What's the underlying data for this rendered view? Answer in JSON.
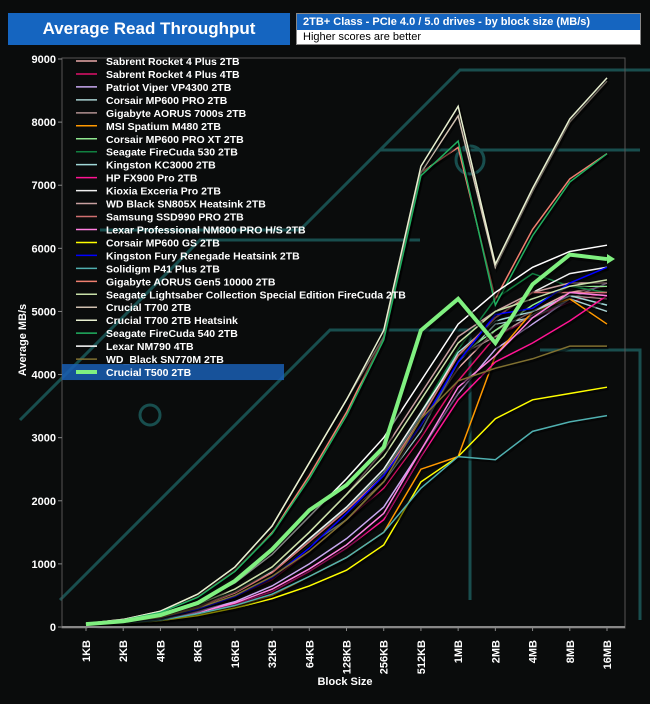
{
  "header": {
    "title": "Average Read Throughput",
    "subtitle": "2TB+ Class - PCIe 4.0 / 5.0  drives - by block size (MB/s)",
    "note": "Higher scores are better"
  },
  "chart_data": {
    "type": "line",
    "title": "Average Read Throughput",
    "xlabel": "Block Size",
    "ylabel": "Average MB/s",
    "ylim": [
      0,
      9000
    ],
    "yticks": [
      0,
      1000,
      2000,
      3000,
      4000,
      5000,
      6000,
      7000,
      8000,
      9000
    ],
    "categories": [
      "1KB",
      "2KB",
      "4KB",
      "8KB",
      "16KB",
      "32KB",
      "64KB",
      "128KB",
      "256KB",
      "512KB",
      "1MB",
      "2MB",
      "4MB",
      "8MB",
      "16MB"
    ],
    "legend_position": "top-left",
    "highlight": "Crucial T500 2TB",
    "series": [
      {
        "name": "Sabrent Rocket 4 Plus 2TB",
        "color": "#e8a8a8",
        "values": [
          40,
          80,
          150,
          300,
          500,
          800,
          1300,
          1800,
          2300,
          3200,
          4100,
          4700,
          5000,
          5300,
          5400
        ]
      },
      {
        "name": "Sabrent Rocket 4 Plus 4TB",
        "color": "#e0106a",
        "values": [
          35,
          75,
          140,
          280,
          480,
          750,
          1200,
          1700,
          2200,
          3000,
          3900,
          4600,
          4900,
          5150,
          5300
        ]
      },
      {
        "name": "Patriot Viper VP4300 2TB",
        "color": "#c8a8f0",
        "values": [
          30,
          70,
          130,
          250,
          400,
          650,
          1000,
          1400,
          1900,
          2800,
          3700,
          4400,
          4800,
          5200,
          5450
        ]
      },
      {
        "name": "Corsair MP600 PRO 2TB",
        "color": "#a8d0d0",
        "values": [
          40,
          85,
          160,
          310,
          520,
          820,
          1300,
          1700,
          2300,
          3100,
          4200,
          4800,
          4900,
          5200,
          5000
        ]
      },
      {
        "name": "Gigabyte AORUS  7000s 2TB",
        "color": "#b09090",
        "values": [
          40,
          85,
          160,
          320,
          540,
          860,
          1350,
          1850,
          2400,
          3300,
          4300,
          4600,
          4950,
          5250,
          5200
        ]
      },
      {
        "name": "MSI Spatium M480 2TB",
        "color": "#ff9900",
        "values": [
          30,
          60,
          110,
          200,
          330,
          500,
          800,
          1100,
          1500,
          2500,
          2700,
          4300,
          5000,
          5200,
          4800
        ]
      },
      {
        "name": "Corsair MP600 PRO XT 2TB",
        "color": "#90e890",
        "values": [
          40,
          85,
          160,
          320,
          540,
          860,
          1350,
          1850,
          2400,
          3300,
          4300,
          4700,
          5100,
          5400,
          5400
        ]
      },
      {
        "name": "Seagate FireCuda 530 2TB",
        "color": "#108040",
        "values": [
          45,
          90,
          170,
          340,
          560,
          900,
          1400,
          1900,
          2500,
          3400,
          4400,
          5200,
          5600,
          5400,
          5300
        ]
      },
      {
        "name": "Kingston KC3000 2TB",
        "color": "#a0d8d8",
        "values": [
          40,
          85,
          160,
          320,
          550,
          880,
          1380,
          1880,
          2450,
          3350,
          4350,
          4850,
          5000,
          5250,
          5100
        ]
      },
      {
        "name": "HP FX900 Pro 2TB",
        "color": "#ff1493",
        "values": [
          30,
          65,
          120,
          220,
          360,
          560,
          880,
          1250,
          1700,
          2700,
          3600,
          4200,
          4500,
          4850,
          5250
        ]
      },
      {
        "name": "Kioxia Exceria Pro 2TB",
        "color": "#f0f0f0",
        "values": [
          40,
          85,
          160,
          320,
          540,
          880,
          1400,
          1900,
          2500,
          3400,
          4300,
          4900,
          5300,
          5600,
          5700
        ]
      },
      {
        "name": "WD Black SN805X  Heatsink 2TB",
        "color": "#c8a0a0",
        "values": [
          45,
          90,
          180,
          360,
          600,
          950,
          1500,
          2100,
          2800,
          3700,
          4600,
          5000,
          5300,
          5450,
          5450
        ]
      },
      {
        "name": "Samsung SSD990 PRO 2TB",
        "color": "#d07070",
        "values": [
          40,
          85,
          160,
          320,
          540,
          860,
          1350,
          1850,
          2400,
          3300,
          4300,
          4900,
          5300,
          5300,
          5300
        ]
      },
      {
        "name": "Lexar Professional NM800 PRO H/S 2TB",
        "color": "#ff80e0",
        "values": [
          30,
          65,
          120,
          230,
          380,
          600,
          920,
          1300,
          1800,
          2800,
          3800,
          4300,
          4900,
          5300,
          5250
        ]
      },
      {
        "name": "Corsair MP600 GS 2TB",
        "color": "#ffff00",
        "values": [
          25,
          50,
          100,
          180,
          300,
          450,
          650,
          900,
          1300,
          2300,
          2700,
          3300,
          3600,
          3700,
          3800
        ]
      },
      {
        "name": "Kingston Fury Renegade Heatsink  2TB",
        "color": "#0000ff",
        "values": [
          35,
          75,
          140,
          280,
          480,
          780,
          1250,
          1800,
          2400,
          3200,
          4200,
          4950,
          5050,
          5450,
          5700
        ]
      },
      {
        "name": "Solidigm P41 Plus 2TB",
        "color": "#50b0b0",
        "values": [
          30,
          60,
          110,
          210,
          340,
          520,
          800,
          1100,
          1500,
          2200,
          2700,
          2650,
          3100,
          3250,
          3350
        ]
      },
      {
        "name": "Gigabyte AORUS Gen5 10000 2TB",
        "color": "#f08070",
        "values": [
          50,
          110,
          230,
          480,
          900,
          1500,
          2400,
          3400,
          4600,
          7200,
          7600,
          5200,
          6300,
          7100,
          7500
        ]
      },
      {
        "name": "Seagate Lightsaber Collection Special Edition FireCuda 2TB",
        "color": "#c8e0a8",
        "values": [
          45,
          95,
          180,
          360,
          600,
          950,
          1500,
          2100,
          2700,
          3600,
          4500,
          5000,
          5200,
          5400,
          5500
        ]
      },
      {
        "name": "Crucial T700 2TB",
        "color": "#d0c0b0",
        "values": [
          55,
          120,
          250,
          520,
          950,
          1600,
          2600,
          3600,
          4600,
          7200,
          8100,
          5700,
          6900,
          8000,
          8650
        ]
      },
      {
        "name": "Crucial T700 2TB Heatsink",
        "color": "#e8f0d0",
        "values": [
          55,
          120,
          250,
          520,
          950,
          1600,
          2600,
          3600,
          4700,
          7300,
          8250,
          5750,
          6950,
          8050,
          8700
        ]
      },
      {
        "name": "Seagate FireCuda 540 2TB",
        "color": "#20b060",
        "values": [
          50,
          110,
          230,
          470,
          880,
          1480,
          2350,
          3350,
          4550,
          7150,
          7700,
          5100,
          6200,
          7050,
          7500
        ]
      },
      {
        "name": "Lexar NM790 4TB",
        "color": "#ffffff",
        "values": [
          50,
          100,
          200,
          400,
          700,
          1150,
          1750,
          2350,
          3000,
          3900,
          4800,
          5300,
          5700,
          5950,
          6050
        ]
      },
      {
        "name": "WD_Black SN770M 2TB",
        "color": "#807030",
        "values": [
          40,
          80,
          150,
          300,
          500,
          800,
          1200,
          1700,
          2300,
          3300,
          3900,
          4100,
          4250,
          4450,
          4450
        ]
      },
      {
        "name": "Crucial T500 2TB",
        "color": "#80f080",
        "values": [
          45,
          90,
          190,
          380,
          730,
          1230,
          1850,
          2250,
          2850,
          4700,
          5200,
          4500,
          5430,
          5900,
          5830
        ]
      }
    ]
  }
}
